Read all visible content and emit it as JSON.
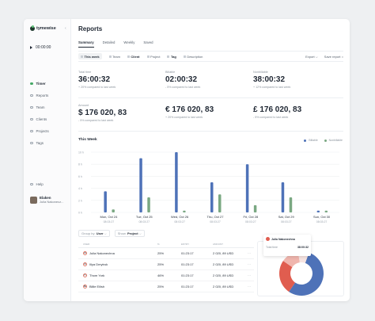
{
  "app": {
    "name": "tymewise"
  },
  "timer": {
    "value": "00:00:00"
  },
  "nav": [
    {
      "label": "Timer"
    },
    {
      "label": "Reports"
    },
    {
      "label": "Team"
    },
    {
      "label": "Clients"
    },
    {
      "label": "Projects"
    },
    {
      "label": "Tags"
    }
  ],
  "help": {
    "label": "Help"
  },
  "user": {
    "name": "Elaken",
    "sub": "Julia Nakonecz..."
  },
  "page": {
    "title": "Reports"
  },
  "tabs": [
    "Summary",
    "Detailed",
    "Weekly",
    "Saved"
  ],
  "filters": [
    "This week",
    "Team",
    "Client",
    "Project",
    "Tag",
    "Description"
  ],
  "actions": {
    "export": "Export",
    "save": "Save report"
  },
  "stats_row1": [
    {
      "label": "Total time",
      "value": "36:00:32",
      "cmp": "+ 20% compared to last week",
      "trend": "up"
    },
    {
      "label": "Billable",
      "value": "02:00:32",
      "cmp": "- 5% compared to last week",
      "trend": "down"
    },
    {
      "label": "Nonbillable",
      "value": "38:00:32",
      "cmp": "+ 12% compared to last week",
      "trend": "up"
    }
  ],
  "stats_row2": [
    {
      "label": "Amount",
      "value": "$ 176 020, 83",
      "cmp": "- 5% compared to last week",
      "trend": "down"
    },
    {
      "label": "",
      "value": "€ 176 020, 83",
      "cmp": "+ 20% compared to last week",
      "trend": "up"
    },
    {
      "label": "",
      "value": "£ 176 020, 83",
      "cmp": "- 5% compared to last week",
      "trend": "down"
    }
  ],
  "chart_data": {
    "type": "bar",
    "title": "This Week",
    "categories": [
      "Mon, Oct 24",
      "Tue, Oct 25",
      "Wed, Oct 26",
      "Thu, Oct 27",
      "Fri, Oct 28",
      "Sat, Oct 29",
      "Sun, Oct 30"
    ],
    "subcategories": [
      "08:03:27",
      "08:03:27",
      "08:03:27",
      "08:03:27",
      "08:03:27",
      "08:03:27",
      "08:03:27"
    ],
    "series": [
      {
        "name": "Billable",
        "values": [
          3.5,
          9.0,
          10.0,
          5.0,
          8.0,
          5.0,
          0.3
        ],
        "color": "#4e72b8"
      },
      {
        "name": "Nonbillable",
        "values": [
          0.5,
          2.5,
          0.3,
          3.0,
          1.2,
          2.5,
          0.3
        ],
        "color": "#7aa882"
      }
    ],
    "ylim": [
      0,
      10
    ],
    "yticks": [
      "0 h",
      "2 h",
      "4 h",
      "6 h",
      "8 h",
      "10 h"
    ],
    "legend": "top-right",
    "grid": true
  },
  "group": {
    "group_label": "Group by:",
    "group_value": "User",
    "show_label": "Show:",
    "show_value": "Project"
  },
  "table": {
    "headers": [
      "USER",
      "%",
      "ENTRY",
      "AMOUNT"
    ],
    "rows": [
      {
        "initials": "JN",
        "user": "Julia Nakonechna",
        "pct": "25%",
        "time": "01:23:17",
        "amount": "2 020, 89 USD"
      },
      {
        "initials": "ID",
        "user": "Illya Dmytruk",
        "pct": "25%",
        "time": "01:23:17",
        "amount": "2 020, 89 USD"
      },
      {
        "initials": "TY",
        "user": "Thom York",
        "pct": "46%",
        "time": "01:23:17",
        "amount": "2 020, 89 USD"
      },
      {
        "initials": "BE",
        "user": "Billie Eilish",
        "pct": "25%",
        "time": "01:23:17",
        "amount": "2 020, 89 USD"
      }
    ]
  },
  "donut": {
    "tooltip_user": "Julia Nakonechna",
    "tooltip_label": "Total time",
    "tooltip_value": "38:00:32",
    "slices": [
      {
        "value": 54,
        "color": "#4e72b8"
      },
      {
        "value": 25,
        "color": "#e05d4f"
      },
      {
        "value": 13,
        "color": "#f0b6ae"
      },
      {
        "value": 8,
        "color": "#f7e4e1"
      }
    ]
  }
}
